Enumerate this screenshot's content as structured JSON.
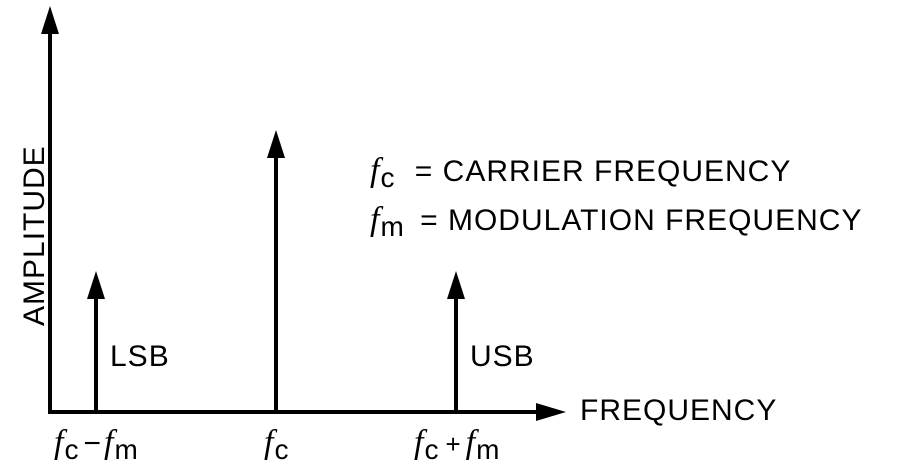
{
  "axes": {
    "y_label": "AMPLITUDE",
    "x_label": "FREQUENCY"
  },
  "legend": {
    "carrier": {
      "symbol": "f",
      "sub": "c",
      "text": "= CARRIER  FREQUENCY"
    },
    "modulation": {
      "symbol": "f",
      "sub": "m",
      "text": "= MODULATION  FREQUENCY"
    }
  },
  "lines": {
    "lsb": {
      "label": "LSB",
      "relative_amplitude": 0.5
    },
    "carrier": {
      "label": "",
      "relative_amplitude": 1.0
    },
    "usb": {
      "label": "USB",
      "relative_amplitude": 0.5
    }
  },
  "ticks": {
    "lsb": {
      "f1": "f",
      "s1": "c",
      "op": "−",
      "f2": "f",
      "s2": "m"
    },
    "carrier": {
      "f1": "f",
      "s1": "c"
    },
    "usb": {
      "f1": "f",
      "s1": "c",
      "op": "+",
      "f2": "f",
      "s2": "m"
    }
  },
  "colors": {
    "ink": "#000000",
    "background": "#ffffff"
  }
}
